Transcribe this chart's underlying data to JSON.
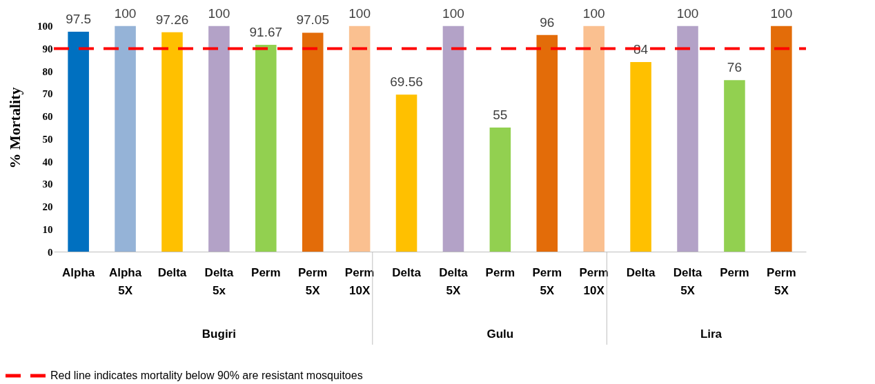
{
  "chart_data": {
    "type": "bar",
    "ylabel": "% Mortality",
    "categories": [
      "Alpha",
      "Alpha 5X",
      "Delta",
      "Delta 5x",
      "Perm",
      "Perm 5X",
      "Perm 10X",
      "Delta",
      "Delta 5X",
      "Perm",
      "Perm 5X",
      "Perm 10X",
      "Delta",
      "Delta 5X",
      "Perm",
      "Perm 5X"
    ],
    "values": [
      97.5,
      100,
      97.26,
      100,
      91.67,
      97.05,
      100,
      69.56,
      100,
      55,
      96,
      100,
      84,
      100,
      76,
      100
    ],
    "colors": [
      "#0070c0",
      "#95b3d7",
      "#ffc000",
      "#b3a2c7",
      "#92d050",
      "#e36c09",
      "#fac090",
      "#ffc000",
      "#b3a2c7",
      "#92d050",
      "#e36c09",
      "#fac090",
      "#ffc000",
      "#b3a2c7",
      "#92d050",
      "#e36c09"
    ],
    "ylim": [
      0,
      110
    ],
    "yticks": [
      0,
      10,
      20,
      30,
      40,
      50,
      60,
      70,
      80,
      90,
      100
    ],
    "ref_lines": [
      {
        "axis": "y",
        "value": 90,
        "label": "Red line indicates mortality below 90% are resistant mosquitoes",
        "color": "#ff0000",
        "line_style": "dashed"
      }
    ],
    "annotations": [
      "Bugiri",
      "Gulu",
      "Lira"
    ],
    "data_labels": true,
    "grid": false
  }
}
